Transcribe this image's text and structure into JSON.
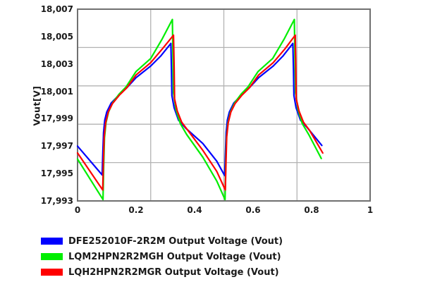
{
  "figure": {
    "background": "#ffffff",
    "text_color": "#1a1a1a"
  },
  "chart_data": {
    "type": "line",
    "title": "",
    "xlabel": "",
    "ylabel": "Vout[V]",
    "xlim": [
      0,
      1
    ],
    "ylim": [
      17993,
      18007
    ],
    "grid": {
      "x_values": [
        0.25,
        0.5,
        0.75
      ],
      "y_values": [
        18004.2,
        18001.4,
        17998.6,
        17995.8
      ],
      "color": "#b3b3b3"
    },
    "border_color": "#707070",
    "legend_position": "bottom-left",
    "x_ticks": [
      {
        "v": 0,
        "label": "0"
      },
      {
        "v": 0.2,
        "label": "0.2"
      },
      {
        "v": 0.4,
        "label": "0.4"
      },
      {
        "v": 0.6,
        "label": "0.6"
      },
      {
        "v": 0.8,
        "label": "0.8"
      },
      {
        "v": 1,
        "label": "1"
      }
    ],
    "y_ticks": [
      {
        "v": 18007,
        "label": "18,007"
      },
      {
        "v": 18005,
        "label": "18,005"
      },
      {
        "v": 18003,
        "label": "18,003"
      },
      {
        "v": 18001,
        "label": "18,001"
      },
      {
        "v": 17999,
        "label": "17,999"
      },
      {
        "v": 17997,
        "label": "17,997"
      },
      {
        "v": 17995,
        "label": "17,995"
      },
      {
        "v": 17993,
        "label": "17,993"
      }
    ],
    "series": [
      {
        "name": "DFE252010F-2R2M Output Voltage (Vout)",
        "slug": "dfe252010f-2r2m",
        "color": "#0000ff",
        "points": [
          [
            0.0,
            17997.0
          ],
          [
            0.084,
            17994.9
          ],
          [
            0.0865,
            17996.6
          ],
          [
            0.089,
            17998.0
          ],
          [
            0.093,
            17998.9
          ],
          [
            0.1,
            17999.5
          ],
          [
            0.115,
            18000.15
          ],
          [
            0.14,
            18000.7
          ],
          [
            0.17,
            18001.3
          ],
          [
            0.2,
            18002.0
          ],
          [
            0.25,
            18002.85
          ],
          [
            0.285,
            18003.6
          ],
          [
            0.319,
            18004.5
          ],
          [
            0.321,
            18002.5
          ],
          [
            0.3225,
            18000.7
          ],
          [
            0.33,
            17999.8
          ],
          [
            0.345,
            17998.9
          ],
          [
            0.37,
            17998.3
          ],
          [
            0.428,
            17997.2
          ],
          [
            0.476,
            17995.9
          ],
          [
            0.503,
            17994.85
          ],
          [
            0.5055,
            17996.6
          ],
          [
            0.508,
            17998.0
          ],
          [
            0.512,
            17998.9
          ],
          [
            0.519,
            17999.5
          ],
          [
            0.534,
            18000.15
          ],
          [
            0.559,
            18000.7
          ],
          [
            0.589,
            18001.3
          ],
          [
            0.619,
            18002.0
          ],
          [
            0.669,
            18002.85
          ],
          [
            0.703,
            18003.6
          ],
          [
            0.736,
            18004.5
          ],
          [
            0.738,
            18002.5
          ],
          [
            0.7395,
            18000.7
          ],
          [
            0.747,
            17999.8
          ],
          [
            0.762,
            17998.9
          ],
          [
            0.787,
            17998.3
          ],
          [
            0.835,
            17997.05
          ]
        ]
      },
      {
        "name": "LQM2HPN2R2MGH Output Voltage (Vout)",
        "slug": "lqm2hpn2r2mgh",
        "color": "#00ee00",
        "points": [
          [
            0.0,
            17996.05
          ],
          [
            0.087,
            17993.1
          ],
          [
            0.0895,
            17995.6
          ],
          [
            0.092,
            17997.6
          ],
          [
            0.097,
            17998.7
          ],
          [
            0.106,
            17999.5
          ],
          [
            0.121,
            18000.2
          ],
          [
            0.142,
            18000.8
          ],
          [
            0.165,
            18001.3
          ],
          [
            0.2,
            18002.45
          ],
          [
            0.25,
            18003.4
          ],
          [
            0.29,
            18004.85
          ],
          [
            0.324,
            18006.25
          ],
          [
            0.326,
            18003.5
          ],
          [
            0.328,
            18000.9
          ],
          [
            0.336,
            17999.7
          ],
          [
            0.351,
            17998.65
          ],
          [
            0.373,
            17997.85
          ],
          [
            0.428,
            17996.2
          ],
          [
            0.476,
            17994.45
          ],
          [
            0.504,
            17993.1
          ],
          [
            0.5065,
            17995.6
          ],
          [
            0.509,
            17997.6
          ],
          [
            0.514,
            17998.7
          ],
          [
            0.523,
            17999.5
          ],
          [
            0.538,
            18000.2
          ],
          [
            0.559,
            18000.8
          ],
          [
            0.582,
            18001.3
          ],
          [
            0.617,
            18002.45
          ],
          [
            0.667,
            18003.4
          ],
          [
            0.707,
            18004.85
          ],
          [
            0.741,
            18006.25
          ],
          [
            0.743,
            18003.5
          ],
          [
            0.745,
            18000.9
          ],
          [
            0.753,
            17999.7
          ],
          [
            0.768,
            17998.65
          ],
          [
            0.79,
            17997.85
          ],
          [
            0.833,
            17996.1
          ]
        ]
      },
      {
        "name": "LQH2HPN2R2MGR Output Voltage (Vout)",
        "slug": "lqh2hpn2r2mgr",
        "color": "#ff0000",
        "points": [
          [
            0.0,
            17996.5
          ],
          [
            0.086,
            17993.8
          ],
          [
            0.0885,
            17995.9
          ],
          [
            0.091,
            17997.7
          ],
          [
            0.096,
            17998.7
          ],
          [
            0.105,
            17999.5
          ],
          [
            0.119,
            18000.1
          ],
          [
            0.142,
            18000.7
          ],
          [
            0.168,
            18001.25
          ],
          [
            0.2,
            18002.2
          ],
          [
            0.25,
            18003.1
          ],
          [
            0.29,
            18004.1
          ],
          [
            0.328,
            18005.1
          ],
          [
            0.33,
            18002.8
          ],
          [
            0.3315,
            18000.45
          ],
          [
            0.341,
            17999.55
          ],
          [
            0.356,
            17998.75
          ],
          [
            0.377,
            17998.15
          ],
          [
            0.428,
            17996.7
          ],
          [
            0.476,
            17995.15
          ],
          [
            0.505,
            17993.8
          ],
          [
            0.5075,
            17995.9
          ],
          [
            0.51,
            17997.7
          ],
          [
            0.515,
            17998.7
          ],
          [
            0.524,
            17999.5
          ],
          [
            0.538,
            18000.1
          ],
          [
            0.561,
            18000.7
          ],
          [
            0.587,
            18001.25
          ],
          [
            0.619,
            18002.2
          ],
          [
            0.669,
            18003.1
          ],
          [
            0.709,
            18004.1
          ],
          [
            0.744,
            18005.1
          ],
          [
            0.746,
            18002.8
          ],
          [
            0.7475,
            18000.45
          ],
          [
            0.757,
            17999.55
          ],
          [
            0.772,
            17998.75
          ],
          [
            0.793,
            17998.15
          ],
          [
            0.838,
            17996.5
          ]
        ]
      }
    ]
  }
}
